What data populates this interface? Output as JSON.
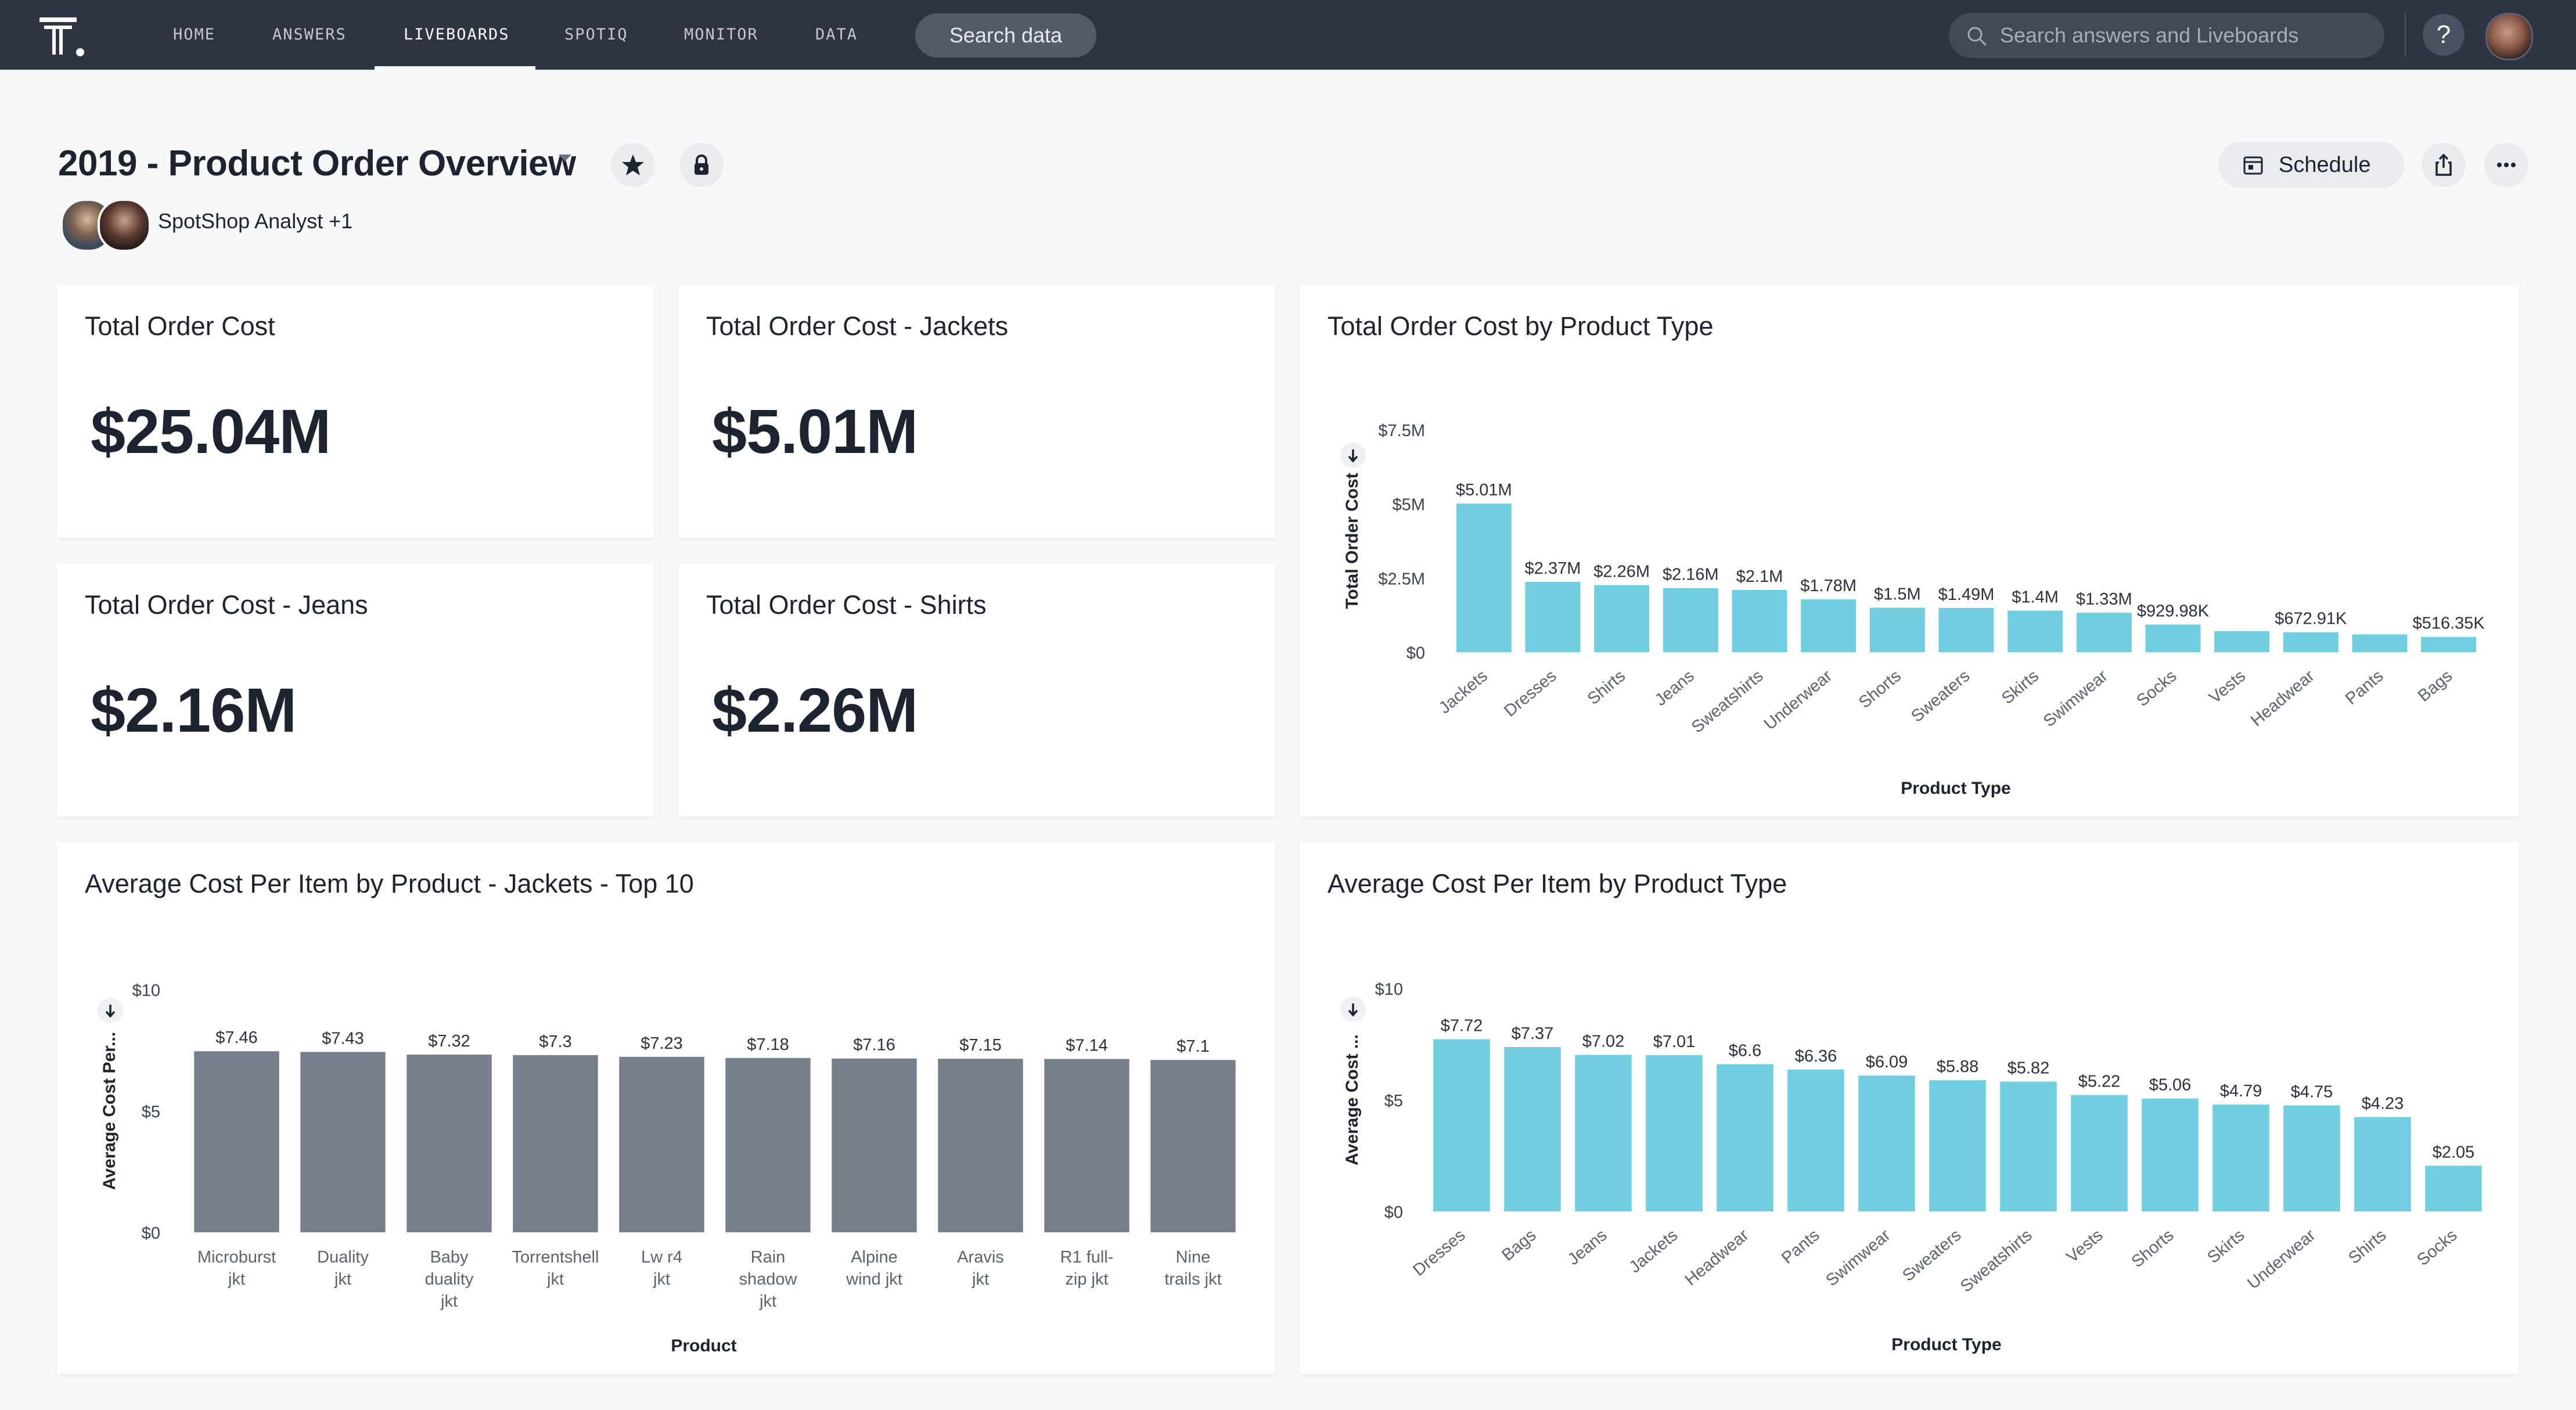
{
  "nav": {
    "items": [
      "HOME",
      "ANSWERS",
      "LIVEBOARDS",
      "SPOTIQ",
      "MONITOR",
      "DATA"
    ],
    "active": "LIVEBOARDS",
    "search_data_label": "Search data",
    "search_placeholder": "Search answers and Liveboards",
    "help_label": "?"
  },
  "header": {
    "title": "2019 - Product Order Overview",
    "authors": "SpotShop Analyst +1",
    "schedule_label": "Schedule"
  },
  "kpis": [
    {
      "title": "Total Order Cost",
      "value": "$25.04M"
    },
    {
      "title": "Total Order Cost - Jackets",
      "value": "$5.01M"
    },
    {
      "title": "Total Order Cost - Jeans",
      "value": "$2.16M"
    },
    {
      "title": "Total Order Cost - Shirts",
      "value": "$2.26M"
    }
  ],
  "chart_data": [
    {
      "type": "bar",
      "title": "Total Order Cost by Product Type",
      "xlabel": "Product Type",
      "ylabel": "Total Order Cost",
      "ylim": [
        0,
        7500000
      ],
      "yticks": [
        "$0",
        "$2.5M",
        "$5M",
        "$7.5M"
      ],
      "categories": [
        "Jackets",
        "Dresses",
        "Shirts",
        "Jeans",
        "Sweatshirts",
        "Underwear",
        "Shorts",
        "Sweaters",
        "Skirts",
        "Swimwear",
        "Socks",
        "Vests",
        "Headwear",
        "Pants",
        "Bags"
      ],
      "values": [
        5010000,
        2370000,
        2260000,
        2160000,
        2100000,
        1780000,
        1500000,
        1490000,
        1400000,
        1330000,
        929980,
        710000,
        672910,
        600000,
        516350
      ],
      "labels": [
        "$5.01M",
        "$2.37M",
        "$2.26M",
        "$2.16M",
        "$2.1M",
        "$1.78M",
        "$1.5M",
        "$1.49M",
        "$1.4M",
        "$1.33M",
        "$929.98K",
        "",
        "$672.91K",
        "",
        "$516.35K"
      ],
      "color": "#71cee0"
    },
    {
      "type": "bar",
      "title": "Average Cost Per Item by Product - Jackets - Top 10",
      "xlabel": "Product",
      "ylabel": "Average Cost Per...",
      "ylim": [
        0,
        10
      ],
      "yticks": [
        "$0",
        "$5",
        "$10"
      ],
      "categories": [
        "Microburst jkt",
        "Duality jkt",
        "Baby duality jkt",
        "Torrentshell jkt",
        "Lw r4 jkt",
        "Rain shadow jkt",
        "Alpine wind jkt",
        "Aravis jkt",
        "R1 full-zip jkt",
        "Nine trails jkt"
      ],
      "category_lines": [
        [
          "Microburst",
          "jkt"
        ],
        [
          "Duality",
          "jkt"
        ],
        [
          "Baby",
          "duality",
          "jkt"
        ],
        [
          "Torrentshell",
          "jkt"
        ],
        [
          "Lw r4",
          "jkt"
        ],
        [
          "Rain",
          "shadow",
          "jkt"
        ],
        [
          "Alpine",
          "wind jkt"
        ],
        [
          "Aravis",
          "jkt"
        ],
        [
          "R1 full-",
          "zip jkt"
        ],
        [
          "Nine",
          "trails jkt"
        ]
      ],
      "values": [
        7.46,
        7.43,
        7.32,
        7.3,
        7.23,
        7.18,
        7.16,
        7.15,
        7.14,
        7.1
      ],
      "labels": [
        "$7.46",
        "$7.43",
        "$7.32",
        "$7.3",
        "$7.23",
        "$7.18",
        "$7.16",
        "$7.15",
        "$7.14",
        "$7.1"
      ],
      "color": "#777e8c"
    },
    {
      "type": "bar",
      "title": "Average Cost Per Item by Product Type",
      "xlabel": "Product Type",
      "ylabel": "Average Cost ...",
      "ylim": [
        0,
        10
      ],
      "yticks": [
        "$0",
        "$5",
        "$10"
      ],
      "categories": [
        "Dresses",
        "Bags",
        "Jeans",
        "Jackets",
        "Headwear",
        "Pants",
        "Swimwear",
        "Sweaters",
        "Sweatshirts",
        "Vests",
        "Shorts",
        "Skirts",
        "Underwear",
        "Shirts",
        "Socks"
      ],
      "values": [
        7.72,
        7.37,
        7.02,
        7.01,
        6.6,
        6.36,
        6.09,
        5.88,
        5.82,
        5.22,
        5.06,
        4.79,
        4.75,
        4.23,
        2.05
      ],
      "labels": [
        "$7.72",
        "$7.37",
        "$7.02",
        "$7.01",
        "$6.6",
        "$6.36",
        "$6.09",
        "$5.88",
        "$5.82",
        "$5.22",
        "$5.06",
        "$4.79",
        "$4.75",
        "$4.23",
        "$2.05"
      ],
      "color": "#71cee0"
    }
  ],
  "icons": [
    "thoughtspot-logo",
    "search-icon",
    "help-icon",
    "user-avatar",
    "star-icon",
    "lock-icon",
    "calendar-icon",
    "share-icon",
    "more-icon",
    "sort-desc-icon"
  ]
}
